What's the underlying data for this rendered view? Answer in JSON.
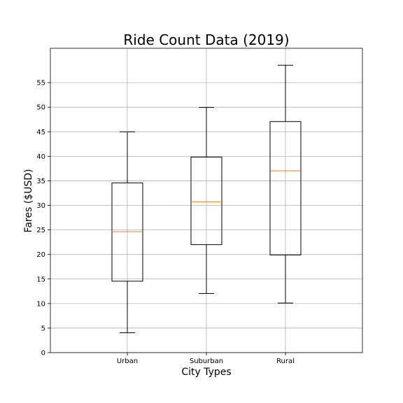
{
  "chart_data": {
    "type": "box",
    "title": "Ride Count Data (2019)",
    "xlabel": "City Types",
    "ylabel": "Fares ($USD)",
    "ylim": [
      0,
      62
    ],
    "yticks": [
      0,
      5,
      10,
      15,
      20,
      25,
      30,
      35,
      40,
      45,
      50,
      55
    ],
    "grid": true,
    "categories": [
      "Urban",
      "Suburban",
      "Rural"
    ],
    "boxes": [
      {
        "category": "Urban",
        "whisker_low": 4.05,
        "q1": 14.55,
        "median": 24.64,
        "q3": 34.58,
        "whisker_high": 44.97
      },
      {
        "category": "Suburban",
        "whisker_low": 12.05,
        "q1": 22.0,
        "median": 30.75,
        "q3": 39.83,
        "whisker_high": 49.96
      },
      {
        "category": "Rural",
        "whisker_low": 10.11,
        "q1": 19.9,
        "median": 37.05,
        "q3": 47.07,
        "whisker_high": 58.55
      }
    ],
    "colors": {
      "box": "#000000",
      "median": "#ff7f0e",
      "grid": "#b0b0b0"
    }
  }
}
